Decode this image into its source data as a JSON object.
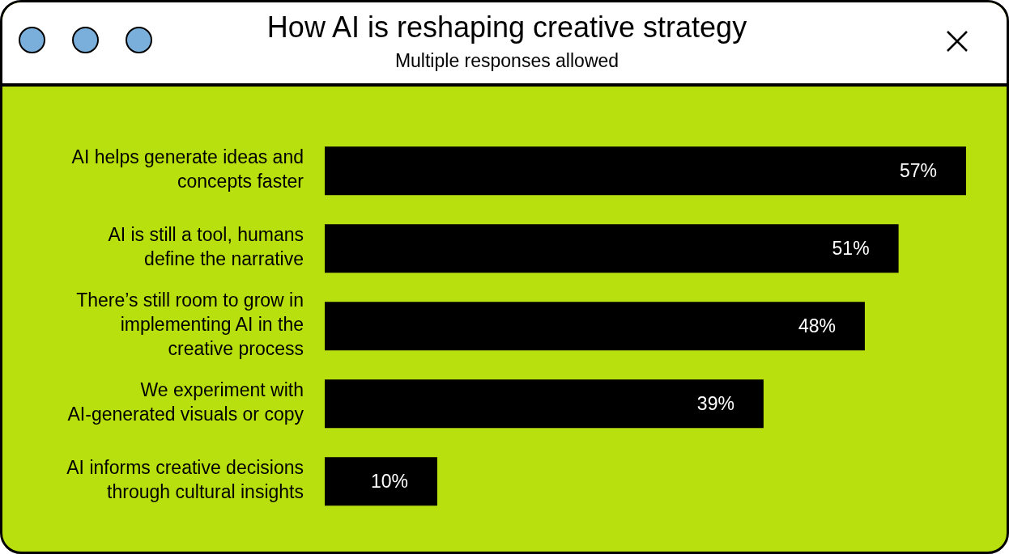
{
  "chart_data": {
    "type": "bar",
    "orientation": "horizontal",
    "title": "How AI is reshaping creative strategy",
    "subtitle": "Multiple responses allowed",
    "categories": [
      "AI helps generate ideas and concepts faster",
      "AI is still a tool, humans define the narrative",
      "There’s still room to grow in implementing AI in the creative process",
      "We experiment with AI-generated visuals or copy",
      "AI informs creative decisions through cultural insights"
    ],
    "values": [
      57,
      51,
      48,
      39,
      10
    ],
    "value_labels": [
      "57%",
      "51%",
      "48%",
      "39%",
      "10%"
    ],
    "color": "#000000"
  }
}
